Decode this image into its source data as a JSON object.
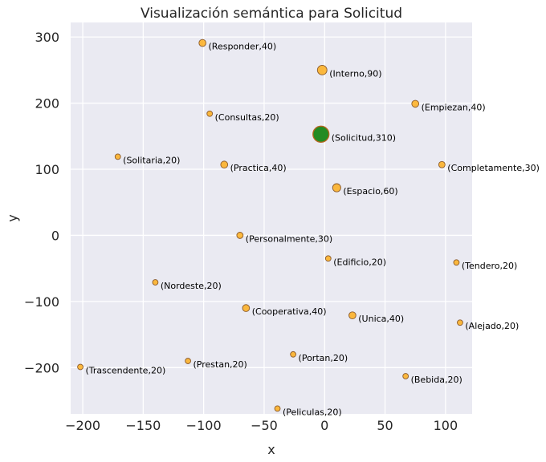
{
  "chart_data": {
    "type": "scatter",
    "title": "Visualización semántica para Solicitud",
    "xlabel": "x",
    "ylabel": "y",
    "xlim": [
      -210,
      122
    ],
    "ylim": [
      -270,
      322
    ],
    "xticks": [
      -200,
      -150,
      -100,
      -50,
      0,
      50,
      100
    ],
    "yticks": [
      -200,
      -100,
      0,
      100,
      200,
      300
    ],
    "grid": true,
    "colors": {
      "background": "#eaeaf2",
      "point": "#ffa500",
      "point_edge": "#8b5a2b",
      "highlight": "#228b22",
      "highlight_edge": "#b5651d"
    },
    "points": [
      {
        "label": "(Solicitud,310)",
        "x": -3,
        "y": 153,
        "weight": 310,
        "highlight": true
      },
      {
        "label": "(Interno,90)",
        "x": -2,
        "y": 250,
        "weight": 90
      },
      {
        "label": "(Espacio,60)",
        "x": 10,
        "y": 72,
        "weight": 60
      },
      {
        "label": "(Responder,40)",
        "x": -101,
        "y": 291,
        "weight": 40
      },
      {
        "label": "(Empiezan,40)",
        "x": 75,
        "y": 199,
        "weight": 40
      },
      {
        "label": "(Practica,40)",
        "x": -83,
        "y": 107,
        "weight": 40
      },
      {
        "label": "(Cooperativa,40)",
        "x": -65,
        "y": -110,
        "weight": 40
      },
      {
        "label": "(Unica,40)",
        "x": 23,
        "y": -121,
        "weight": 40
      },
      {
        "label": "(Completamente,30)",
        "x": 97,
        "y": 107,
        "weight": 30
      },
      {
        "label": "(Personalmente,30)",
        "x": -70,
        "y": 0,
        "weight": 30
      },
      {
        "label": "(Consultas,20)",
        "x": -95,
        "y": 184,
        "weight": 20
      },
      {
        "label": "(Solitaria,20)",
        "x": -171,
        "y": 119,
        "weight": 20
      },
      {
        "label": "(Edificio,20)",
        "x": 3,
        "y": -35,
        "weight": 20
      },
      {
        "label": "(Tendero,20)",
        "x": 109,
        "y": -41,
        "weight": 20
      },
      {
        "label": "(Nordeste,20)",
        "x": -140,
        "y": -71,
        "weight": 20
      },
      {
        "label": "(Alejado,20)",
        "x": 112,
        "y": -132,
        "weight": 20
      },
      {
        "label": "(Portan,20)",
        "x": -26,
        "y": -180,
        "weight": 20
      },
      {
        "label": "(Prestan,20)",
        "x": -113,
        "y": -190,
        "weight": 20
      },
      {
        "label": "(Trascendente,20)",
        "x": -202,
        "y": -199,
        "weight": 20
      },
      {
        "label": "(Bebida,20)",
        "x": 67,
        "y": -213,
        "weight": 20
      },
      {
        "label": "(Peliculas,20)",
        "x": -39,
        "y": -262,
        "weight": 20
      }
    ]
  }
}
